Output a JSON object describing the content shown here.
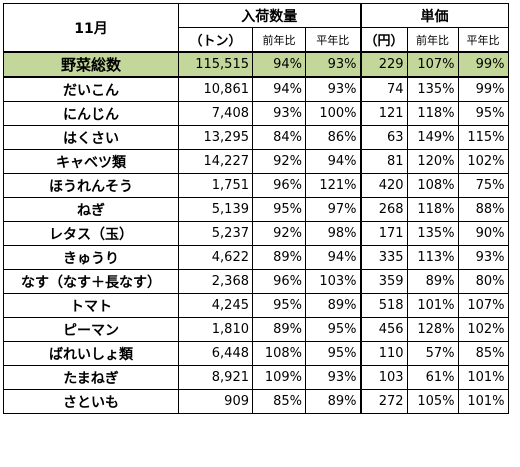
{
  "header": {
    "month": "11月",
    "volume_title": "入荷数量",
    "price_title": "単価",
    "volume_unit": "（トン）",
    "price_unit": "（円）",
    "yoy": "前年比",
    "avg": "平年比"
  },
  "rows": [
    {
      "name": "野菜総数",
      "volume": "115,515",
      "v_yoy": "94%",
      "v_avg": "93%",
      "price": "229",
      "p_yoy": "107%",
      "p_avg": "99%"
    },
    {
      "name": "だいこん",
      "volume": "10,861",
      "v_yoy": "94%",
      "v_avg": "93%",
      "price": "74",
      "p_yoy": "135%",
      "p_avg": "99%"
    },
    {
      "name": "にんじん",
      "volume": "7,408",
      "v_yoy": "93%",
      "v_avg": "100%",
      "price": "121",
      "p_yoy": "118%",
      "p_avg": "95%"
    },
    {
      "name": "はくさい",
      "volume": "13,295",
      "v_yoy": "84%",
      "v_avg": "86%",
      "price": "63",
      "p_yoy": "149%",
      "p_avg": "115%"
    },
    {
      "name": "キャベツ類",
      "volume": "14,227",
      "v_yoy": "92%",
      "v_avg": "94%",
      "price": "81",
      "p_yoy": "120%",
      "p_avg": "102%"
    },
    {
      "name": "ほうれんそう",
      "volume": "1,751",
      "v_yoy": "96%",
      "v_avg": "121%",
      "price": "420",
      "p_yoy": "108%",
      "p_avg": "75%"
    },
    {
      "name": "ねぎ",
      "volume": "5,139",
      "v_yoy": "95%",
      "v_avg": "97%",
      "price": "268",
      "p_yoy": "118%",
      "p_avg": "88%"
    },
    {
      "name": "レタス（玉）",
      "volume": "5,237",
      "v_yoy": "92%",
      "v_avg": "98%",
      "price": "171",
      "p_yoy": "135%",
      "p_avg": "90%"
    },
    {
      "name": "きゅうり",
      "volume": "4,622",
      "v_yoy": "89%",
      "v_avg": "94%",
      "price": "335",
      "p_yoy": "113%",
      "p_avg": "93%"
    },
    {
      "name": "なす（なす＋長なす）",
      "volume": "2,368",
      "v_yoy": "96%",
      "v_avg": "103%",
      "price": "359",
      "p_yoy": "89%",
      "p_avg": "80%"
    },
    {
      "name": "トマト",
      "volume": "4,245",
      "v_yoy": "95%",
      "v_avg": "89%",
      "price": "518",
      "p_yoy": "101%",
      "p_avg": "107%"
    },
    {
      "name": "ピーマン",
      "volume": "1,810",
      "v_yoy": "89%",
      "v_avg": "95%",
      "price": "456",
      "p_yoy": "128%",
      "p_avg": "102%"
    },
    {
      "name": "ばれいしょ類",
      "volume": "6,448",
      "v_yoy": "108%",
      "v_avg": "95%",
      "price": "110",
      "p_yoy": "57%",
      "p_avg": "85%"
    },
    {
      "name": "たまねぎ",
      "volume": "8,921",
      "v_yoy": "109%",
      "v_avg": "93%",
      "price": "103",
      "p_yoy": "61%",
      "p_avg": "101%"
    },
    {
      "name": "さといも",
      "volume": "909",
      "v_yoy": "85%",
      "v_avg": "89%",
      "price": "272",
      "p_yoy": "105%",
      "p_avg": "101%"
    }
  ],
  "colors": {
    "total_row_bg": "#c4d79b",
    "border": "#000000"
  }
}
